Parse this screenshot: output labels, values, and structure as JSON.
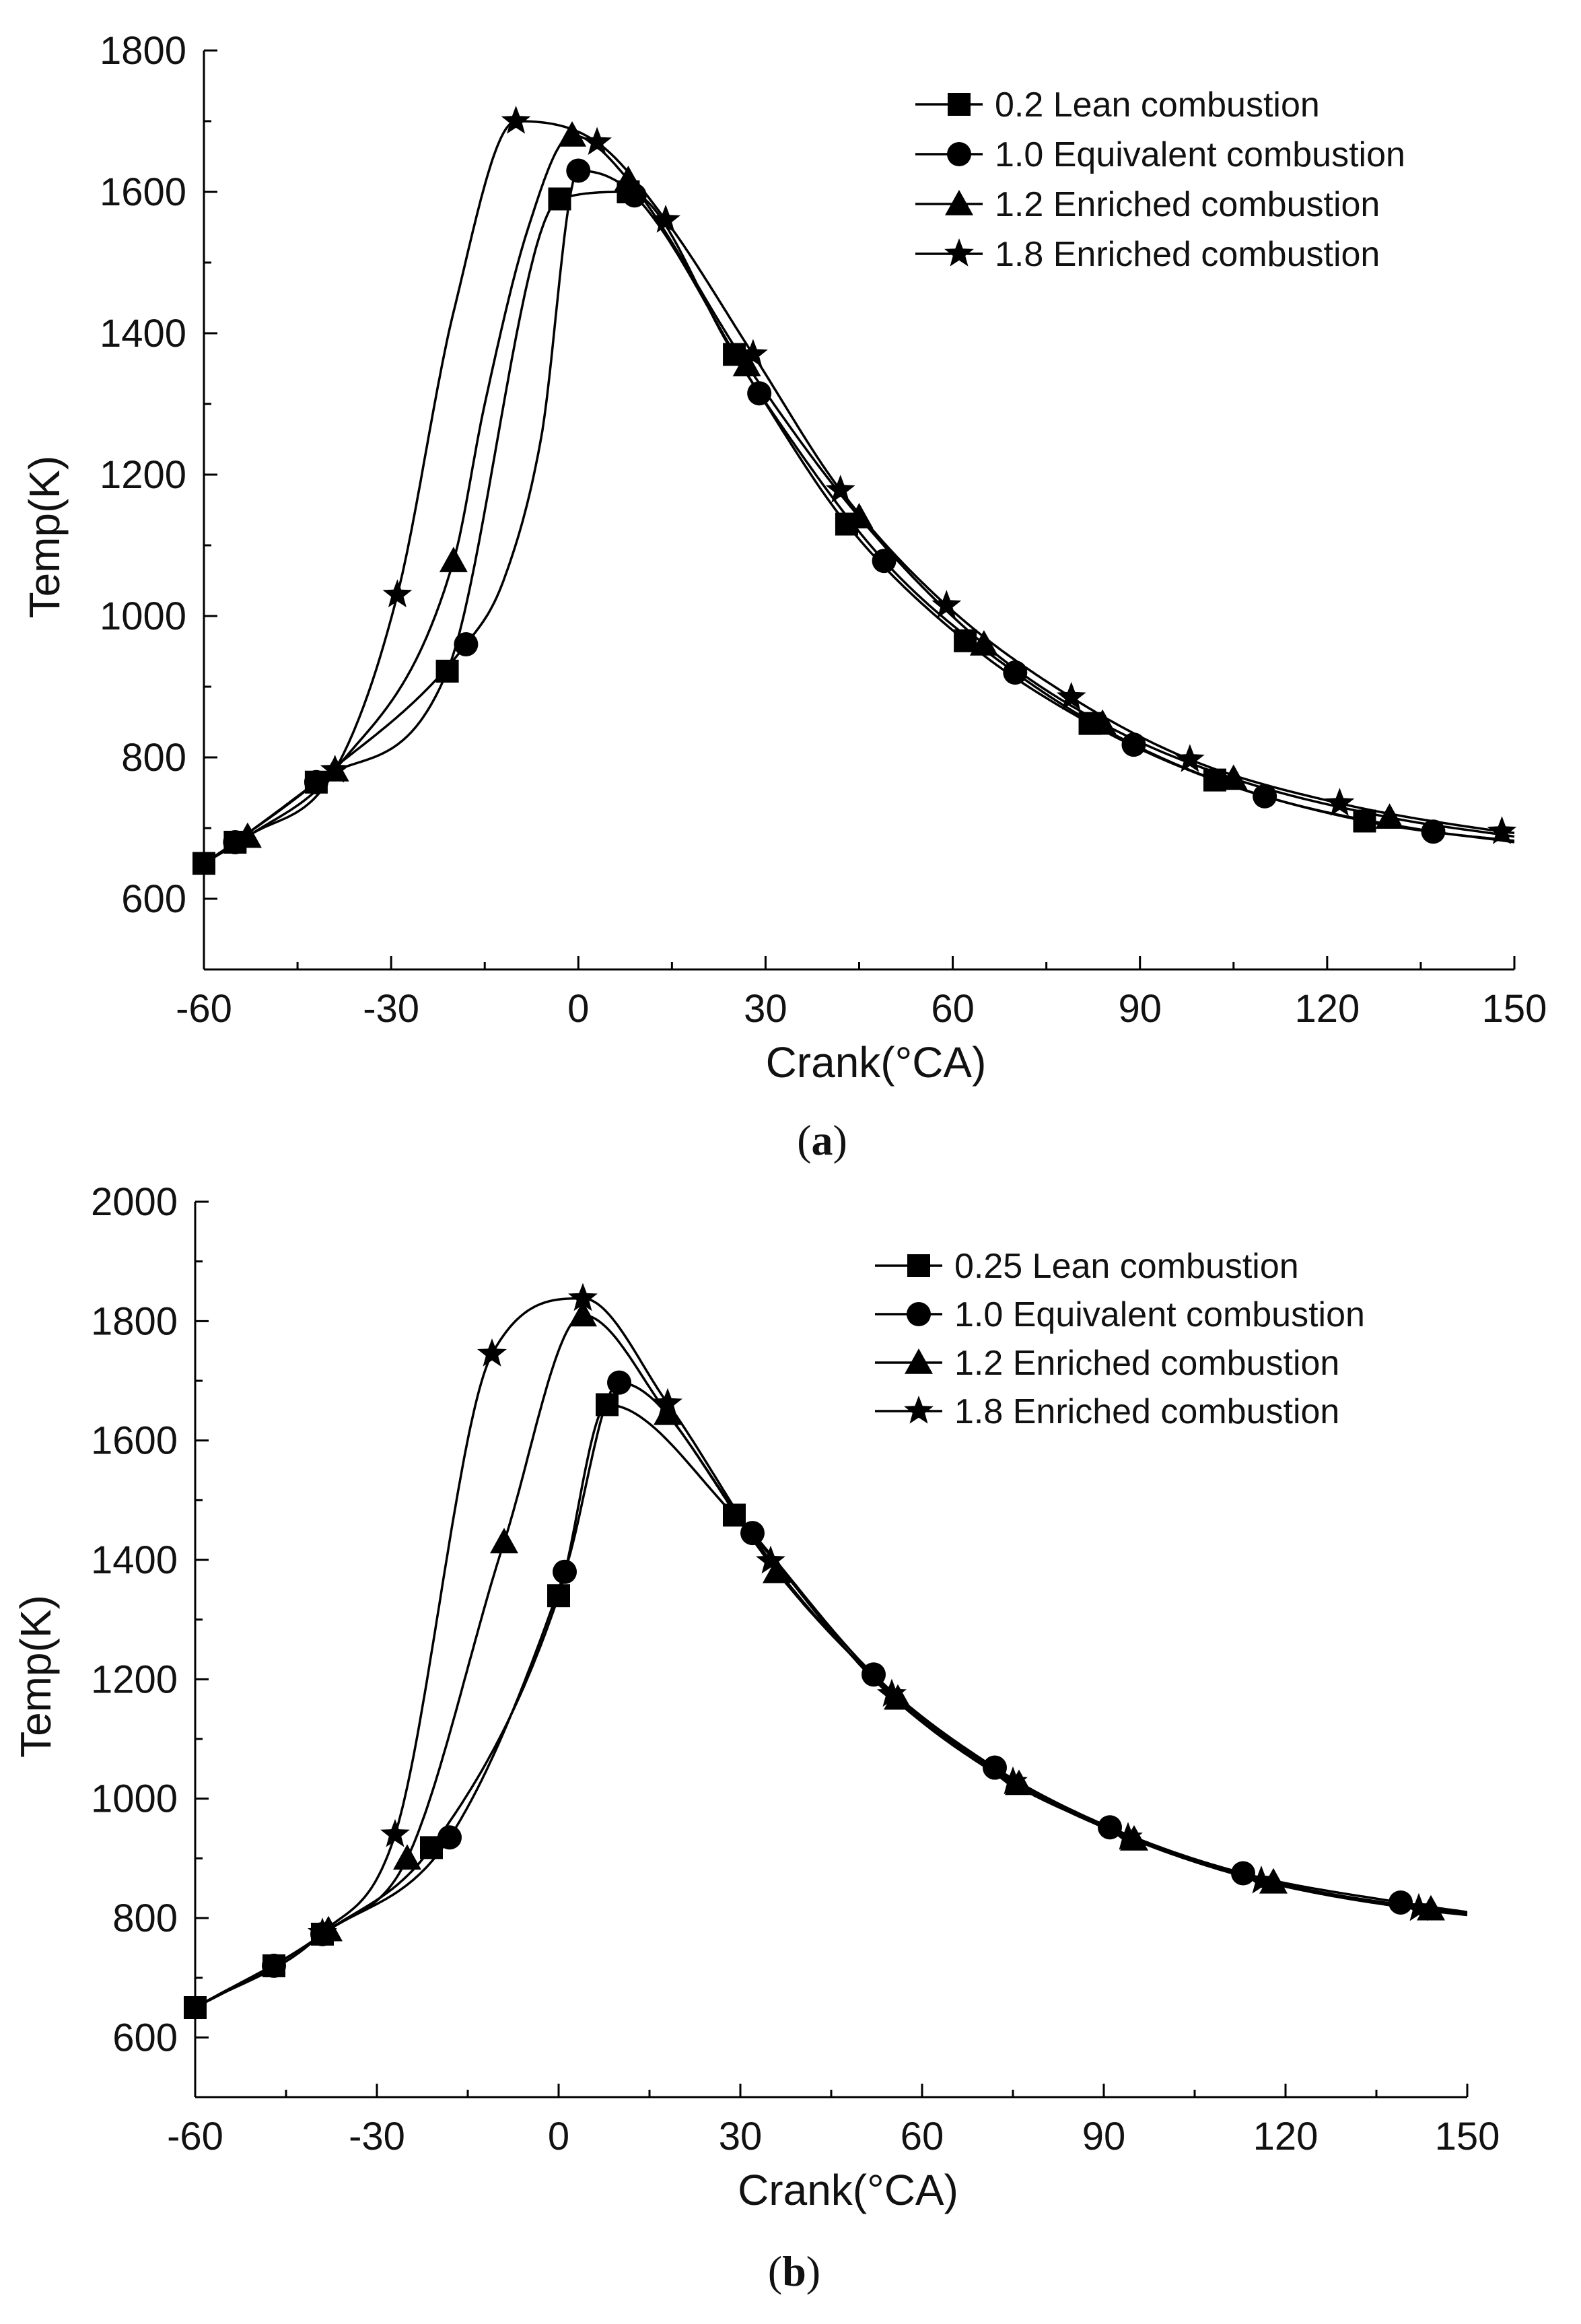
{
  "figure": {
    "chart_data": [
      {
        "type": "line",
        "panel_label": "a",
        "title": "",
        "xlabel": "Crank(°CA)",
        "ylabel": "Temp(K)",
        "xlim": [
          -60,
          150
        ],
        "ylim": [
          500,
          1800
        ],
        "xticks": [
          -60,
          -30,
          0,
          30,
          60,
          90,
          120,
          150
        ],
        "yticks": [
          600,
          800,
          1000,
          1200,
          1400,
          1600,
          1800
        ],
        "legend_position": "top-right",
        "series": [
          {
            "name": "0.2 Lean combustion",
            "marker": "square",
            "x": [
              -60,
              -55,
              -42,
              -21,
              -3,
              8,
              25,
              43,
              62,
              82,
              102,
              126,
              150
            ],
            "y": [
              650,
              680,
              765,
              922,
              1590,
              1600,
              1370,
              1130,
              965,
              848,
              768,
              710,
              680
            ],
            "marker_x": [
              -60,
              -55,
              -42,
              -21,
              -3,
              8,
              25,
              43,
              62,
              82,
              102,
              126
            ]
          },
          {
            "name": "1.0 Equivalent combustion",
            "marker": "circle",
            "x": [
              -60,
              -55,
              -42,
              -18,
              -12,
              -6,
              0,
              9,
              29,
              49,
              70,
              89,
              110,
              137,
              150
            ],
            "y": [
              650,
              680,
              765,
              960,
              1050,
              1250,
              1630,
              1595,
              1315,
              1078,
              920,
              818,
              745,
              695,
              682
            ],
            "marker_x": [
              -55,
              -42,
              -18,
              0,
              9,
              29,
              49,
              70,
              89,
              110,
              137
            ]
          },
          {
            "name": "1.2 Enriched combustion",
            "marker": "triangle",
            "x": [
              -60,
              -53,
              -39,
              -20,
              -15,
              -8,
              -1,
              8,
              27,
              45,
              65,
              84,
              105,
              130,
              150
            ],
            "y": [
              650,
              688,
              782,
              1078,
              1300,
              1550,
              1680,
              1617,
              1355,
              1140,
              960,
              848,
              770,
              715,
              688
            ],
            "marker_x": [
              -53,
              -39,
              -20,
              -1,
              8,
              27,
              45,
              65,
              84,
              105,
              130
            ]
          },
          {
            "name": "1.8 Enriched combustion",
            "marker": "star",
            "x": [
              -60,
              -53,
              -39,
              -29,
              -20,
              -10,
              3,
              14,
              28,
              42,
              59,
              79,
              98,
              122,
              148,
              150
            ],
            "y": [
              650,
              688,
              782,
              1030,
              1430,
              1700,
              1670,
              1560,
              1370,
              1178,
              1015,
              885,
              797,
              735,
              695,
              693
            ],
            "marker_x": [
              -39,
              -29,
              -10,
              3,
              14,
              28,
              42,
              59,
              79,
              98,
              122,
              148
            ]
          }
        ]
      },
      {
        "type": "line",
        "panel_label": "b",
        "title": "",
        "xlabel": "Crank(°CA)",
        "ylabel": "Temp(K)",
        "xlim": [
          -60,
          150
        ],
        "ylim": [
          500,
          2000
        ],
        "xticks": [
          -60,
          -30,
          0,
          30,
          60,
          90,
          120,
          150
        ],
        "yticks": [
          600,
          800,
          1000,
          1200,
          1400,
          1600,
          1800,
          2000
        ],
        "legend_position": "top-right",
        "series": [
          {
            "name": "0.25 Lean combustion",
            "marker": "square",
            "x": [
              -60,
              -47,
              -39,
              -21,
              0,
              8,
              29,
              53,
              75,
              95,
              118,
              143,
              150
            ],
            "y": [
              650,
              720,
              773,
              918,
              1340,
              1660,
              1475,
              1190,
              1025,
              935,
              858,
              813,
              805
            ],
            "marker_x": [
              -60,
              -47,
              -39,
              -21,
              0,
              8,
              29
            ]
          },
          {
            "name": "1.0 Equivalent combustion",
            "marker": "circle",
            "x": [
              -60,
              -47,
              -39,
              -18,
              1,
              10,
              32,
              52,
              72,
              91,
              113,
              139,
              150
            ],
            "y": [
              650,
              720,
              773,
              935,
              1380,
              1697,
              1445,
              1208,
              1052,
              952,
              875,
              826,
              810
            ],
            "marker_x": [
              -47,
              -39,
              -18,
              1,
              10,
              32,
              52,
              72,
              91,
              113,
              139
            ]
          },
          {
            "name": "1.2 Enriched combustion",
            "marker": "triangle",
            "x": [
              -60,
              -38,
              -25,
              -9,
              4,
              18,
              36,
              56,
              76,
              95,
              118,
              144,
              150
            ],
            "y": [
              650,
              780,
              900,
              1430,
              1810,
              1645,
              1380,
              1168,
              1025,
              932,
              860,
              815,
              808
            ],
            "marker_x": [
              -38,
              -25,
              -9,
              4,
              18,
              36,
              56,
              76,
              95,
              118,
              144
            ]
          },
          {
            "name": "1.8 Enriched combustion",
            "marker": "star",
            "x": [
              -60,
              -39,
              -27,
              -11,
              4,
              18,
              35,
              55,
              75,
              94,
              116,
              142,
              150
            ],
            "y": [
              650,
              775,
              940,
              1745,
              1838,
              1662,
              1398,
              1175,
              1028,
              935,
              862,
              816,
              808
            ],
            "marker_x": [
              -39,
              -27,
              -11,
              4,
              18,
              35,
              55,
              75,
              94,
              116,
              142
            ]
          }
        ]
      }
    ]
  }
}
